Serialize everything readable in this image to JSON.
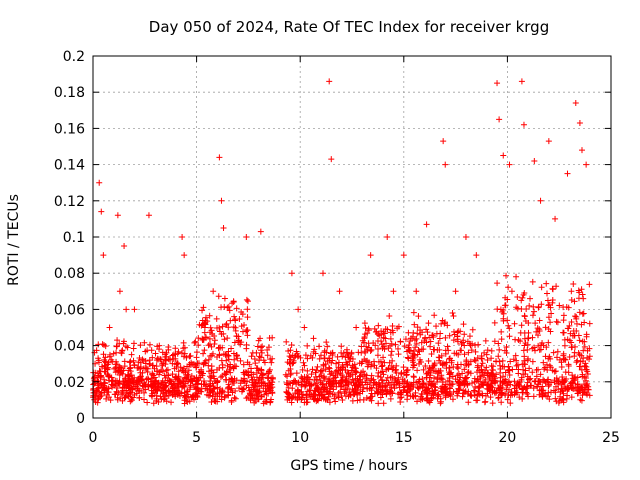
{
  "chart_data": {
    "type": "scatter",
    "title": "Day 050 of 2024, Rate Of TEC Index for receiver krgg",
    "xlabel": "GPS time / hours",
    "ylabel": "ROTI / TECUs",
    "xlim": [
      0,
      25
    ],
    "ylim": [
      0,
      0.2
    ],
    "x_ticks": [
      "0",
      "5",
      "10",
      "15",
      "20",
      "25"
    ],
    "y_ticks": [
      "0",
      "0.02",
      "0.04",
      "0.06",
      "0.08",
      "0.1",
      "0.12",
      "0.14",
      "0.16",
      "0.18",
      "0.2"
    ],
    "grid": true,
    "marker": "plus",
    "series_color": "#ff0000",
    "gaps_hours": [
      [
        8.7,
        9.3
      ]
    ],
    "x": [
      0.1,
      0.3,
      0.4,
      0.5,
      0.8,
      1.2,
      1.3,
      1.5,
      1.6,
      2.0,
      2.7,
      3.2,
      4.3,
      4.4,
      5.4,
      5.8,
      6.1,
      6.2,
      6.3,
      7.4,
      8.1,
      9.6,
      9.9,
      10.2,
      11.1,
      11.4,
      11.5,
      11.9,
      12.7,
      13.4,
      14.2,
      14.5,
      15.0,
      15.6,
      16.1,
      16.9,
      17.0,
      17.5,
      18.0,
      18.5,
      19.5,
      19.6,
      19.8,
      20.1,
      20.7,
      20.8,
      21.3,
      21.6,
      22.0,
      22.3,
      22.9,
      23.3,
      23.5,
      23.6,
      23.8
    ],
    "y": [
      0.03,
      0.13,
      0.114,
      0.09,
      0.05,
      0.112,
      0.07,
      0.095,
      0.06,
      0.06,
      0.112,
      0.04,
      0.1,
      0.09,
      0.05,
      0.07,
      0.144,
      0.12,
      0.105,
      0.1,
      0.103,
      0.08,
      0.06,
      0.05,
      0.08,
      0.186,
      0.143,
      0.07,
      0.05,
      0.09,
      0.1,
      0.07,
      0.09,
      0.07,
      0.107,
      0.153,
      0.14,
      0.07,
      0.1,
      0.09,
      0.185,
      0.165,
      0.145,
      0.14,
      0.186,
      0.162,
      0.142,
      0.12,
      0.153,
      0.11,
      0.135,
      0.174,
      0.163,
      0.148,
      0.14
    ]
  }
}
